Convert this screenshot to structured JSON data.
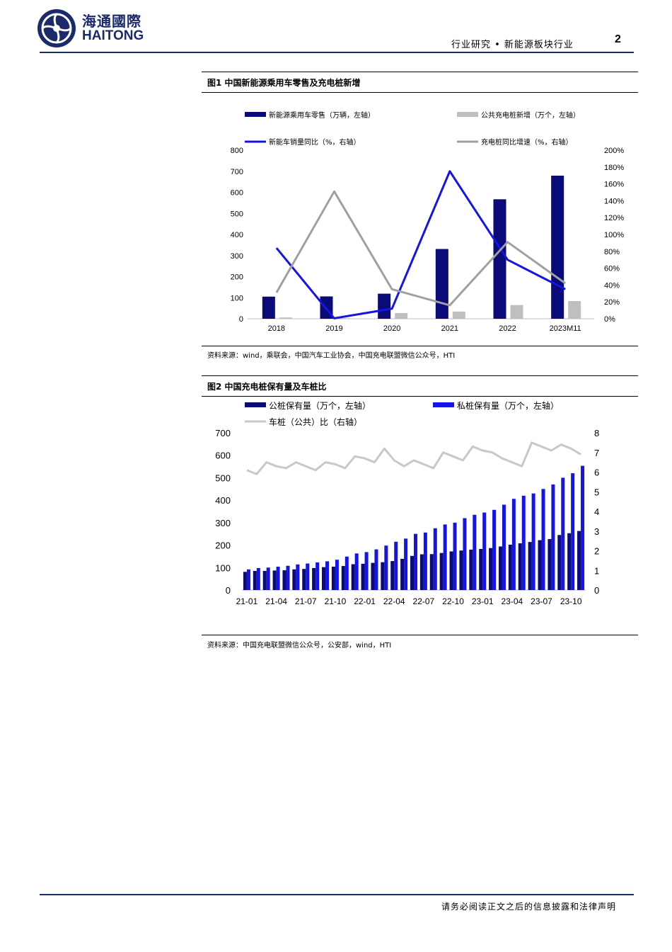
{
  "header": {
    "logo_cn": "海通國際",
    "logo_en": "HAITONG",
    "section": "行业研究 • 新能源板块行业",
    "page_number": "2"
  },
  "figure1": {
    "title": "图1   中国新能源乘用车零售及充电桩新增",
    "source": "资料来源：wind，乘联会，中国汽车工业协会，中国充电联盟微信公众号，HTI"
  },
  "figure2": {
    "title": "图2   中国充电桩保有量及车桩比",
    "source": "资料来源：中国充电联盟微信公众号，公安部，wind，HTI"
  },
  "footer": {
    "disclaimer": "请务必阅读正文之后的信息披露和法律声明"
  },
  "colors": {
    "navy": "#0a0a78",
    "gray": "#bfbfbf",
    "blue": "#1414e6",
    "darkgray": "#a0a0a0",
    "brand": "#1b2a6b"
  },
  "chart_data": [
    {
      "type": "bar",
      "categories": [
        "2018",
        "2019",
        "2020",
        "2021",
        "2022",
        "2023M11"
      ],
      "series": [
        {
          "name": "新能源乘用车零售（万辆，左轴）",
          "kind": "bar",
          "axis": "left",
          "color": "#0a0a78",
          "values": [
            105,
            106,
            119,
            331,
            567,
            679
          ]
        },
        {
          "name": "公共充电桩新增（万个，左轴）",
          "kind": "bar",
          "axis": "left",
          "color": "#bfbfbf",
          "values": [
            6,
            3,
            27,
            34,
            65,
            84
          ]
        },
        {
          "name": "新能车销量同比（%，右轴）",
          "kind": "line",
          "axis": "right",
          "color": "#1414e6",
          "values": [
            84,
            0.5,
            12,
            175,
            70,
            35
          ]
        },
        {
          "name": "充电桩同比增速（%，右轴）",
          "kind": "line",
          "axis": "right",
          "color": "#a0a0a0",
          "values": [
            31,
            151,
            35,
            16,
            91,
            42
          ]
        }
      ],
      "ylim": [
        0,
        800
      ],
      "yticks": [
        "0",
        "100",
        "200",
        "300",
        "400",
        "500",
        "600",
        "700",
        "800"
      ],
      "y2lim": [
        0,
        200
      ],
      "y2ticks": [
        "0%",
        "20%",
        "40%",
        "60%",
        "80%",
        "100%",
        "120%",
        "140%",
        "160%",
        "180%",
        "200%"
      ],
      "legend_position": "top",
      "grid": false
    },
    {
      "type": "bar",
      "months": [
        "21-01",
        "21-02",
        "21-03",
        "21-04",
        "21-05",
        "21-06",
        "21-07",
        "21-08",
        "21-09",
        "21-10",
        "21-11",
        "21-12",
        "22-01",
        "22-02",
        "22-03",
        "22-04",
        "22-05",
        "22-06",
        "22-07",
        "22-08",
        "22-09",
        "22-10",
        "22-11",
        "22-12",
        "23-01",
        "23-02",
        "23-03",
        "23-04",
        "23-05",
        "23-06",
        "23-07",
        "23-08",
        "23-09",
        "23-10",
        "23-11"
      ],
      "xtick_labels": [
        "21-01",
        "21-04",
        "21-07",
        "21-10",
        "22-01",
        "22-04",
        "22-07",
        "22-10",
        "23-01",
        "23-04",
        "23-07",
        "23-10"
      ],
      "series": [
        {
          "name": "公桩保有量（万个，左轴）",
          "kind": "bar",
          "axis": "left",
          "color": "#0a0a78",
          "values": [
            81,
            85,
            85,
            87,
            88,
            92,
            94,
            98,
            102,
            104,
            107,
            115,
            117,
            121,
            124,
            129,
            139,
            152,
            159,
            160,
            165,
            172,
            176,
            180,
            183,
            187,
            194,
            202,
            208,
            214,
            222,
            227,
            245,
            253,
            263
          ]
        },
        {
          "name": "私桩保有量（万个，左轴）",
          "kind": "bar",
          "axis": "left",
          "color": "#1414e6",
          "values": [
            92,
            98,
            100,
            104,
            108,
            114,
            118,
            123,
            128,
            135,
            149,
            163,
            169,
            181,
            198,
            215,
            229,
            250,
            256,
            275,
            292,
            300,
            320,
            335,
            345,
            357,
            380,
            406,
            420,
            430,
            450,
            470,
            500,
            520,
            553
          ]
        },
        {
          "name": "车桩（公共）比（右轴）",
          "kind": "line",
          "axis": "right",
          "color": "#c8c8c8",
          "values": [
            6.1,
            5.9,
            6.5,
            6.3,
            6.2,
            6.5,
            6.3,
            6.1,
            6.5,
            6.4,
            6.2,
            6.8,
            6.7,
            6.5,
            7.2,
            6.6,
            6.3,
            6.6,
            6.4,
            6.2,
            7.0,
            6.8,
            6.6,
            7.3,
            7.1,
            7.0,
            6.7,
            6.5,
            6.3,
            7.5,
            7.3,
            7.1,
            7.4,
            7.2,
            6.9
          ]
        }
      ],
      "ylim": [
        0,
        700
      ],
      "yticks": [
        "0",
        "100",
        "200",
        "300",
        "400",
        "500",
        "600",
        "700"
      ],
      "y2lim": [
        0,
        8
      ],
      "y2ticks": [
        "0",
        "1",
        "2",
        "3",
        "4",
        "5",
        "6",
        "7",
        "8"
      ],
      "legend_position": "top",
      "grid": false
    }
  ]
}
